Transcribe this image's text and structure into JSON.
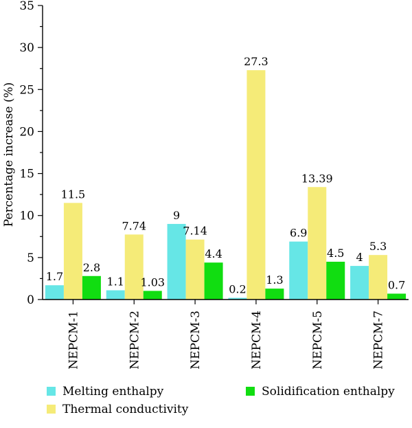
{
  "chart_data": {
    "type": "bar",
    "title": "",
    "xlabel": "",
    "ylabel": "Percentage increase (%)",
    "ylim": [
      0,
      35
    ],
    "yticks": [
      0,
      5,
      10,
      15,
      20,
      25,
      30,
      35
    ],
    "categories": [
      "NEPCM-1",
      "NEPCM-2",
      "NEPCM-3",
      "NEPCM-4",
      "NEPCM-5",
      "NEPCM-7"
    ],
    "series": [
      {
        "name": "Melting enthalpy",
        "color": "#66E6E6",
        "values": [
          1.7,
          1.1,
          9,
          0.2,
          6.9,
          4
        ],
        "labels": [
          "1.7",
          "1.1",
          "9",
          "0.2",
          "6.9",
          "4"
        ]
      },
      {
        "name": "Thermal conductivity",
        "color": "#F5EB78",
        "values": [
          11.5,
          7.74,
          7.14,
          27.3,
          13.39,
          5.3
        ],
        "labels": [
          "11.5",
          "7.74",
          "7.14",
          "27.3",
          "13.39",
          "5.3"
        ]
      },
      {
        "name": "Solidification enthalpy",
        "color": "#11DD11",
        "values": [
          2.8,
          1.03,
          4.4,
          1.3,
          4.5,
          0.7
        ],
        "labels": [
          "2.8",
          "1.03",
          "4.4",
          "1.3",
          "4.5",
          "0.7"
        ]
      }
    ],
    "legend_position": "bottom",
    "grid": false
  }
}
